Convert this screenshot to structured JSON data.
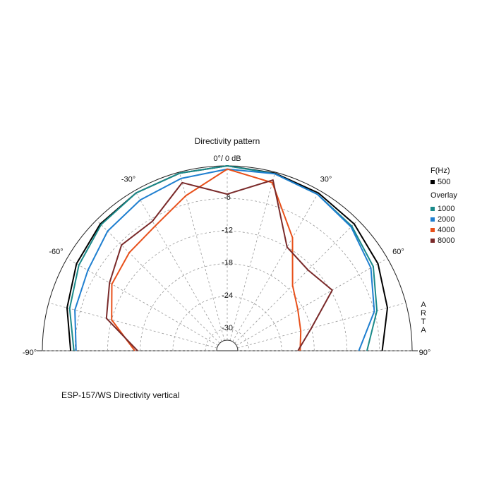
{
  "chart_data": {
    "type": "polar",
    "title": "Directivity pattern",
    "footnote": "ESP-157/WS  Directivity vertical",
    "brand": "ARTA",
    "legend_title": "F(Hz)",
    "overlay_label": "Overlay",
    "x": [
      -90,
      -75,
      -60,
      -45,
      -30,
      -15,
      0,
      15,
      30,
      45,
      60,
      75,
      90
    ],
    "xlim": [
      -90,
      90
    ],
    "xticks": [
      {
        "value": -90,
        "label": "-90°"
      },
      {
        "value": -60,
        "label": "-60°"
      },
      {
        "value": -30,
        "label": "-30°"
      },
      {
        "value": 0,
        "label": "0°/ 0 dB"
      },
      {
        "value": 30,
        "label": "30°"
      },
      {
        "value": 60,
        "label": "60°"
      },
      {
        "value": 90,
        "label": "90°"
      }
    ],
    "ylim": [
      -34,
      0
    ],
    "yticks": [
      -30,
      -24,
      -18,
      -12,
      -6
    ],
    "grid": true,
    "series": [
      {
        "name": "500",
        "color": "#000000",
        "values": [
          -5.2,
          -3.5,
          -2,
          -1,
          -0.5,
          -0.2,
          0,
          -0.2,
          -0.5,
          -1,
          -2,
          -3.5,
          -5.5
        ]
      },
      {
        "name": "1000",
        "color": "#1a8a8a",
        "values": [
          -5.8,
          -4,
          -2.5,
          -1.2,
          -0.5,
          -0.2,
          0,
          -0.3,
          -0.8,
          -1.6,
          -3,
          -5.5,
          -8.3
        ]
      },
      {
        "name": "2000",
        "color": "#1f7fd0",
        "values": [
          -6.2,
          -5,
          -4.4,
          -2.9,
          -2,
          -1.2,
          -0.6,
          -0.3,
          -0.8,
          -1.8,
          -3.5,
          -6,
          -9.8
        ]
      },
      {
        "name": "4000",
        "color": "#e8501a",
        "values": [
          -17,
          -12,
          -9.5,
          -8.5,
          -7.5,
          -4.5,
          -0.6,
          -2,
          -10,
          -17,
          -19,
          -20,
          -20.6
        ]
      },
      {
        "name": "8000",
        "color": "#7a2a2a",
        "values": [
          -17.5,
          -11,
          -9,
          -6.5,
          -6.5,
          -2,
          -5.2,
          -1.5,
          -12,
          -13,
          -11.7,
          -18,
          -21
        ]
      }
    ]
  }
}
